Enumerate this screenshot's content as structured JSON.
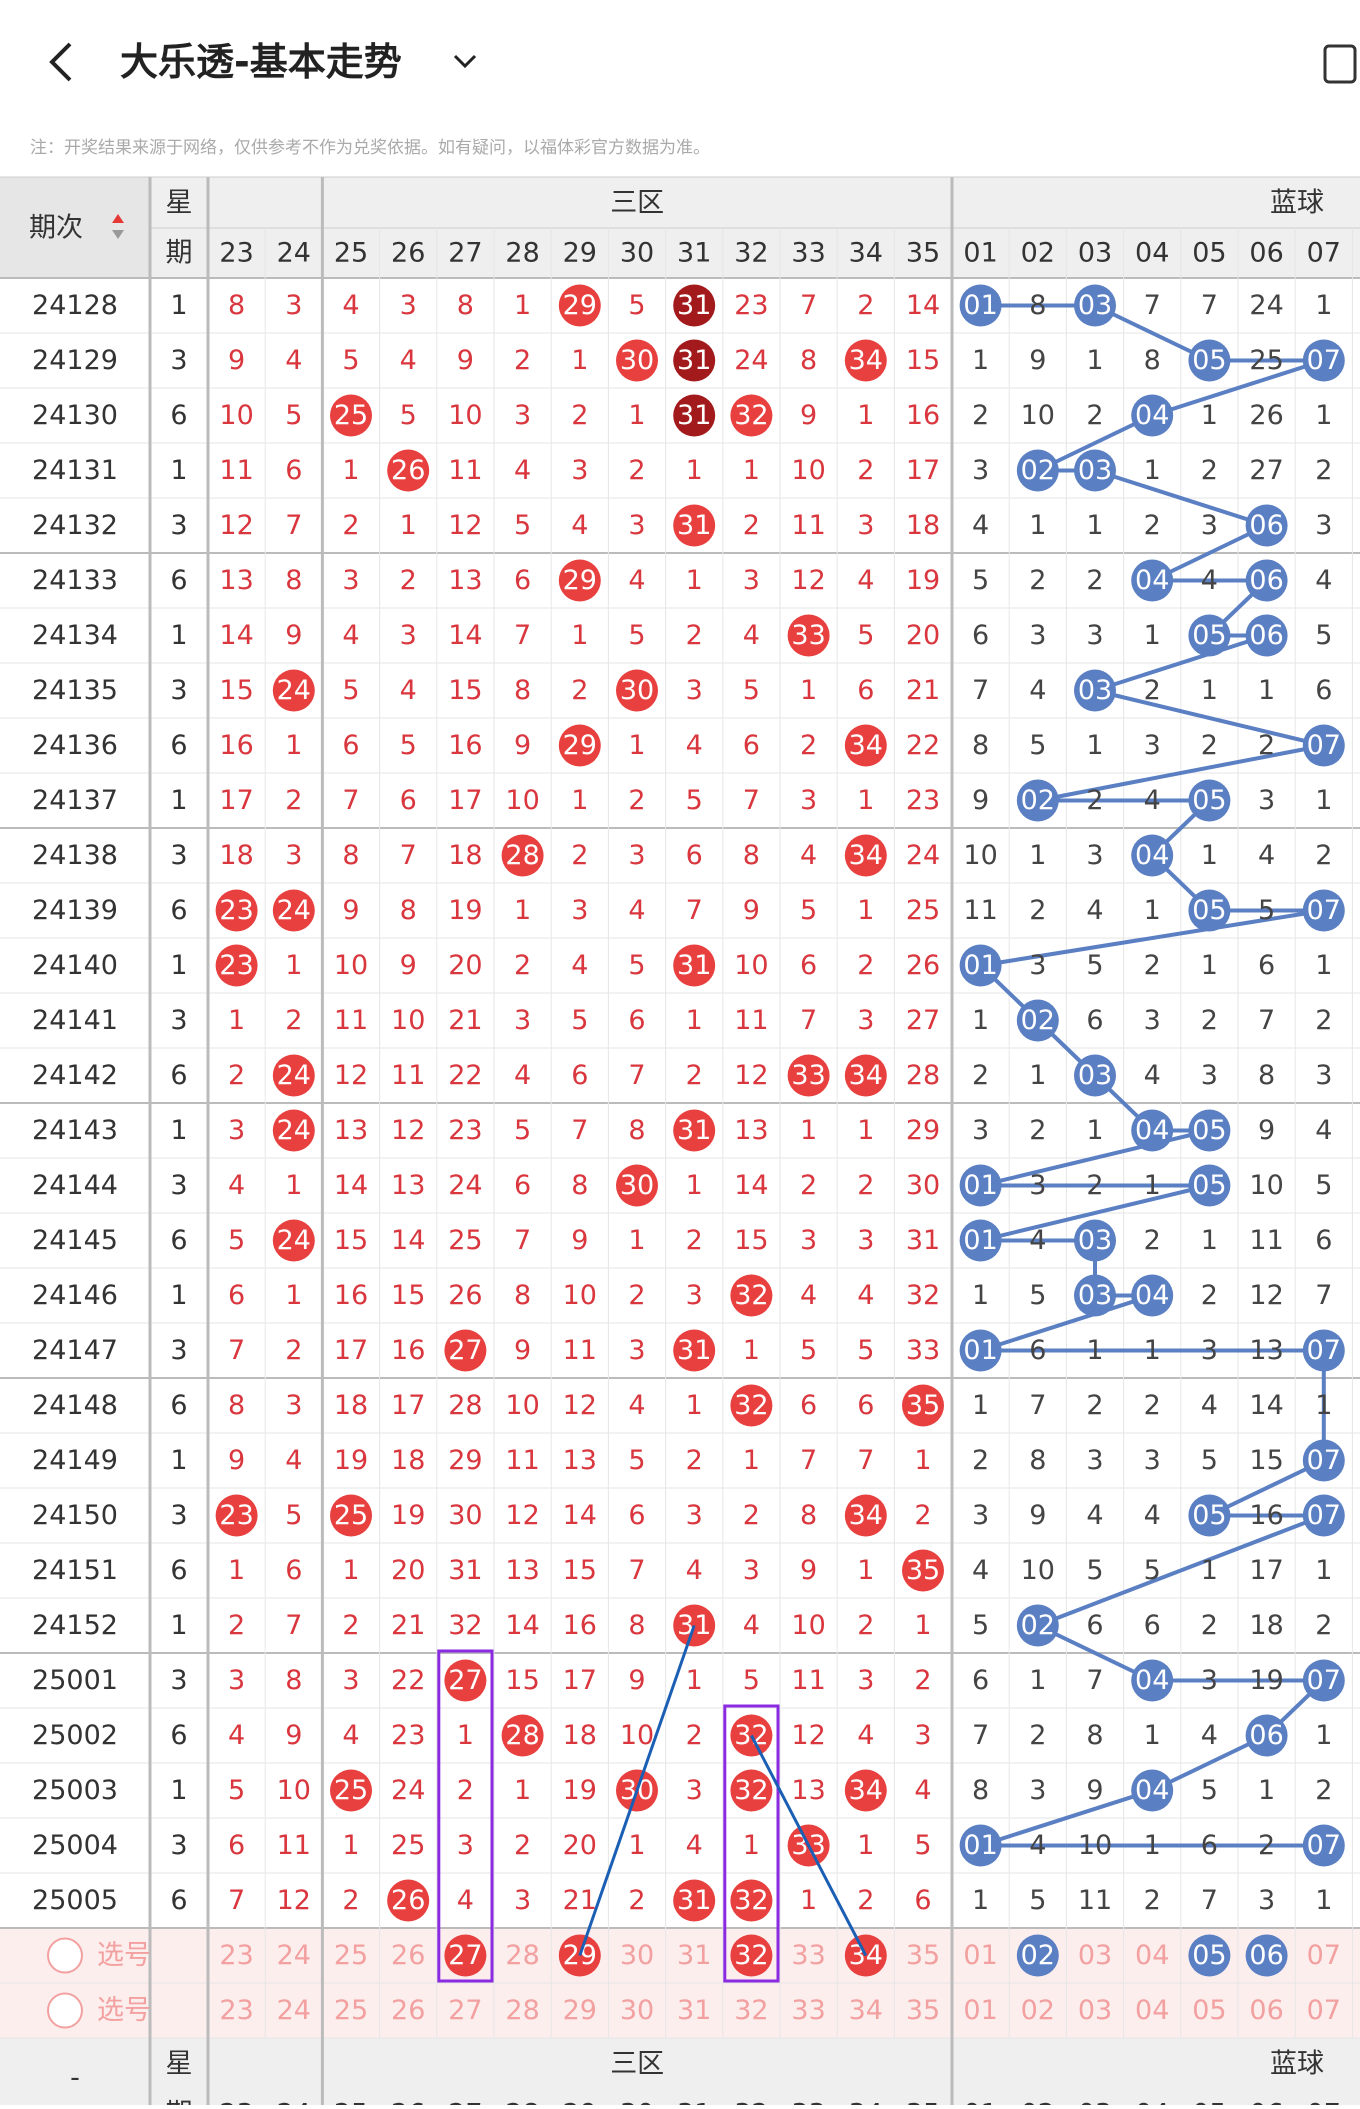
{
  "header": {
    "title": "大乐透-基本走势",
    "notice": "注：开奖结果来源于网络，仅供参考不作为兑奖依据。如有疑问，以福体彩官方数据为准。"
  },
  "table": {
    "col_headers": {
      "period": "期次",
      "weekday_1": "星",
      "weekday_2": "期",
      "red_zone": "三区",
      "blue_zone": "蓝球",
      "red": [
        "23",
        "24",
        "25",
        "26",
        "27",
        "28",
        "29",
        "30",
        "31",
        "32",
        "33",
        "34",
        "35"
      ],
      "blue": [
        "01",
        "02",
        "03",
        "04",
        "05",
        "06",
        "07"
      ]
    },
    "rows": [
      {
        "period": "24128",
        "weekday": "1",
        "red": [
          "8",
          "3",
          "4",
          "3",
          "8",
          "1",
          "29",
          "5",
          "31",
          "23",
          "7",
          "2",
          "14"
        ],
        "blue": [
          "01",
          "8",
          "03",
          "7",
          "7",
          "24",
          "1"
        ]
      },
      {
        "period": "24129",
        "weekday": "3",
        "red": [
          "9",
          "4",
          "5",
          "4",
          "9",
          "2",
          "1",
          "30",
          "31",
          "24",
          "8",
          "34",
          "15"
        ],
        "blue": [
          "1",
          "9",
          "1",
          "8",
          "05",
          "25",
          "07"
        ]
      },
      {
        "period": "24130",
        "weekday": "6",
        "red": [
          "10",
          "5",
          "25",
          "5",
          "10",
          "3",
          "2",
          "1",
          "31",
          "32",
          "9",
          "1",
          "16"
        ],
        "blue": [
          "2",
          "10",
          "2",
          "04",
          "1",
          "26",
          "1"
        ]
      },
      {
        "period": "24131",
        "weekday": "1",
        "red": [
          "11",
          "6",
          "1",
          "26",
          "11",
          "4",
          "3",
          "2",
          "1",
          "1",
          "10",
          "2",
          "17"
        ],
        "blue": [
          "3",
          "02",
          "03",
          "1",
          "2",
          "27",
          "2"
        ]
      },
      {
        "period": "24132",
        "weekday": "3",
        "red": [
          "12",
          "7",
          "2",
          "1",
          "12",
          "5",
          "4",
          "3",
          "31",
          "2",
          "11",
          "3",
          "18"
        ],
        "blue": [
          "4",
          "1",
          "1",
          "2",
          "3",
          "06",
          "3"
        ]
      },
      {
        "period": "24133",
        "weekday": "6",
        "red": [
          "13",
          "8",
          "3",
          "2",
          "13",
          "6",
          "29",
          "4",
          "1",
          "3",
          "12",
          "4",
          "19"
        ],
        "blue": [
          "5",
          "2",
          "2",
          "04",
          "4",
          "06",
          "4"
        ]
      },
      {
        "period": "24134",
        "weekday": "1",
        "red": [
          "14",
          "9",
          "4",
          "3",
          "14",
          "7",
          "1",
          "5",
          "2",
          "4",
          "33",
          "5",
          "20"
        ],
        "blue": [
          "6",
          "3",
          "3",
          "1",
          "05",
          "06",
          "5"
        ]
      },
      {
        "period": "24135",
        "weekday": "3",
        "red": [
          "15",
          "24",
          "5",
          "4",
          "15",
          "8",
          "2",
          "30",
          "3",
          "5",
          "1",
          "6",
          "21"
        ],
        "blue": [
          "7",
          "4",
          "03",
          "2",
          "1",
          "1",
          "6"
        ]
      },
      {
        "period": "24136",
        "weekday": "6",
        "red": [
          "16",
          "1",
          "6",
          "5",
          "16",
          "9",
          "29",
          "1",
          "4",
          "6",
          "2",
          "34",
          "22"
        ],
        "blue": [
          "8",
          "5",
          "1",
          "3",
          "2",
          "2",
          "07"
        ]
      },
      {
        "period": "24137",
        "weekday": "1",
        "red": [
          "17",
          "2",
          "7",
          "6",
          "17",
          "10",
          "1",
          "2",
          "5",
          "7",
          "3",
          "1",
          "23"
        ],
        "blue": [
          "9",
          "02",
          "2",
          "4",
          "05",
          "3",
          "1"
        ]
      },
      {
        "period": "24138",
        "weekday": "3",
        "red": [
          "18",
          "3",
          "8",
          "7",
          "18",
          "28",
          "2",
          "3",
          "6",
          "8",
          "4",
          "34",
          "24"
        ],
        "blue": [
          "10",
          "1",
          "3",
          "04",
          "1",
          "4",
          "2"
        ]
      },
      {
        "period": "24139",
        "weekday": "6",
        "red": [
          "23",
          "24",
          "9",
          "8",
          "19",
          "1",
          "3",
          "4",
          "7",
          "9",
          "5",
          "1",
          "25"
        ],
        "blue": [
          "11",
          "2",
          "4",
          "1",
          "05",
          "5",
          "07"
        ]
      },
      {
        "period": "24140",
        "weekday": "1",
        "red": [
          "23",
          "1",
          "10",
          "9",
          "20",
          "2",
          "4",
          "5",
          "31",
          "10",
          "6",
          "2",
          "26"
        ],
        "blue": [
          "01",
          "3",
          "5",
          "2",
          "1",
          "6",
          "1"
        ]
      },
      {
        "period": "24141",
        "weekday": "3",
        "red": [
          "1",
          "2",
          "11",
          "10",
          "21",
          "3",
          "5",
          "6",
          "1",
          "11",
          "7",
          "3",
          "27"
        ],
        "blue": [
          "1",
          "02",
          "6",
          "3",
          "2",
          "7",
          "2"
        ]
      },
      {
        "period": "24142",
        "weekday": "6",
        "red": [
          "2",
          "24",
          "12",
          "11",
          "22",
          "4",
          "6",
          "7",
          "2",
          "12",
          "33",
          "34",
          "28"
        ],
        "blue": [
          "2",
          "1",
          "03",
          "4",
          "3",
          "8",
          "3"
        ]
      },
      {
        "period": "24143",
        "weekday": "1",
        "red": [
          "3",
          "24",
          "13",
          "12",
          "23",
          "5",
          "7",
          "8",
          "31",
          "13",
          "1",
          "1",
          "29"
        ],
        "blue": [
          "3",
          "2",
          "1",
          "04",
          "05",
          "9",
          "4"
        ]
      },
      {
        "period": "24144",
        "weekday": "3",
        "red": [
          "4",
          "1",
          "14",
          "13",
          "24",
          "6",
          "8",
          "30",
          "1",
          "14",
          "2",
          "2",
          "30"
        ],
        "blue": [
          "01",
          "3",
          "2",
          "1",
          "05",
          "10",
          "5"
        ]
      },
      {
        "period": "24145",
        "weekday": "6",
        "red": [
          "5",
          "24",
          "15",
          "14",
          "25",
          "7",
          "9",
          "1",
          "2",
          "15",
          "3",
          "3",
          "31"
        ],
        "blue": [
          "01",
          "4",
          "03",
          "2",
          "1",
          "11",
          "6"
        ]
      },
      {
        "period": "24146",
        "weekday": "1",
        "red": [
          "6",
          "1",
          "16",
          "15",
          "26",
          "8",
          "10",
          "2",
          "3",
          "32",
          "4",
          "4",
          "32"
        ],
        "blue": [
          "1",
          "5",
          "03",
          "04",
          "2",
          "12",
          "7"
        ]
      },
      {
        "period": "24147",
        "weekday": "3",
        "red": [
          "7",
          "2",
          "17",
          "16",
          "27",
          "9",
          "11",
          "3",
          "31",
          "1",
          "5",
          "5",
          "33"
        ],
        "blue": [
          "01",
          "6",
          "1",
          "1",
          "3",
          "13",
          "07"
        ]
      },
      {
        "period": "24148",
        "weekday": "6",
        "red": [
          "8",
          "3",
          "18",
          "17",
          "28",
          "10",
          "12",
          "4",
          "1",
          "32",
          "6",
          "6",
          "35"
        ],
        "blue": [
          "1",
          "7",
          "2",
          "2",
          "4",
          "14",
          "1"
        ]
      },
      {
        "period": "24149",
        "weekday": "1",
        "red": [
          "9",
          "4",
          "19",
          "18",
          "29",
          "11",
          "13",
          "5",
          "2",
          "1",
          "7",
          "7",
          "1"
        ],
        "blue": [
          "2",
          "8",
          "3",
          "3",
          "5",
          "15",
          "07"
        ]
      },
      {
        "period": "24150",
        "weekday": "3",
        "red": [
          "23",
          "5",
          "25",
          "19",
          "30",
          "12",
          "14",
          "6",
          "3",
          "2",
          "8",
          "34",
          "2"
        ],
        "blue": [
          "3",
          "9",
          "4",
          "4",
          "05",
          "16",
          "07"
        ]
      },
      {
        "period": "24151",
        "weekday": "6",
        "red": [
          "1",
          "6",
          "1",
          "20",
          "31",
          "13",
          "15",
          "7",
          "4",
          "3",
          "9",
          "1",
          "35"
        ],
        "blue": [
          "4",
          "10",
          "5",
          "5",
          "1",
          "17",
          "1"
        ]
      },
      {
        "period": "24152",
        "weekday": "1",
        "red": [
          "2",
          "7",
          "2",
          "21",
          "32",
          "14",
          "16",
          "8",
          "31",
          "4",
          "10",
          "2",
          "1"
        ],
        "blue": [
          "5",
          "02",
          "6",
          "6",
          "2",
          "18",
          "2"
        ]
      },
      {
        "period": "25001",
        "weekday": "3",
        "red": [
          "3",
          "8",
          "3",
          "22",
          "27",
          "15",
          "17",
          "9",
          "1",
          "5",
          "11",
          "3",
          "2"
        ],
        "blue": [
          "6",
          "1",
          "7",
          "04",
          "3",
          "19",
          "07"
        ]
      },
      {
        "period": "25002",
        "weekday": "6",
        "red": [
          "4",
          "9",
          "4",
          "23",
          "1",
          "28",
          "18",
          "10",
          "2",
          "32",
          "12",
          "4",
          "3"
        ],
        "blue": [
          "7",
          "2",
          "8",
          "1",
          "4",
          "06",
          "1"
        ]
      },
      {
        "period": "25003",
        "weekday": "1",
        "red": [
          "5",
          "10",
          "25",
          "24",
          "2",
          "1",
          "19",
          "30",
          "3",
          "32",
          "13",
          "34",
          "4"
        ],
        "blue": [
          "8",
          "3",
          "9",
          "04",
          "5",
          "1",
          "2"
        ]
      },
      {
        "period": "25004",
        "weekday": "3",
        "red": [
          "6",
          "11",
          "1",
          "25",
          "3",
          "2",
          "20",
          "1",
          "4",
          "1",
          "33",
          "1",
          "5"
        ],
        "blue": [
          "01",
          "4",
          "10",
          "1",
          "6",
          "2",
          "07"
        ]
      },
      {
        "period": "25005",
        "weekday": "6",
        "red": [
          "7",
          "12",
          "2",
          "26",
          "4",
          "3",
          "21",
          "2",
          "31",
          "32",
          "1",
          "2",
          "6"
        ],
        "blue": [
          "1",
          "5",
          "11",
          "2",
          "7",
          "3",
          "1"
        ]
      }
    ],
    "pick_rows": [
      {
        "label": "选号",
        "red": [
          "23",
          "24",
          "25",
          "26",
          "27",
          "28",
          "29",
          "30",
          "31",
          "32",
          "33",
          "34",
          "35"
        ],
        "blue": [
          "01",
          "02",
          "03",
          "04",
          "05",
          "06",
          "07"
        ],
        "selected_red": [
          "27",
          "29",
          "32",
          "34"
        ],
        "selected_blue": [
          "02",
          "05",
          "06"
        ]
      },
      {
        "label": "选号",
        "red": [
          "23",
          "24",
          "25",
          "26",
          "27",
          "28",
          "29",
          "30",
          "31",
          "32",
          "33",
          "34",
          "35"
        ],
        "blue": [
          "01",
          "02",
          "03",
          "04",
          "05",
          "06",
          "07"
        ],
        "selected_red": [],
        "selected_blue": []
      }
    ],
    "footer_header": {
      "period": "-",
      "weekday_1": "星",
      "weekday_2": "期",
      "red_zone": "三区",
      "blue_zone": "蓝球"
    }
  }
}
